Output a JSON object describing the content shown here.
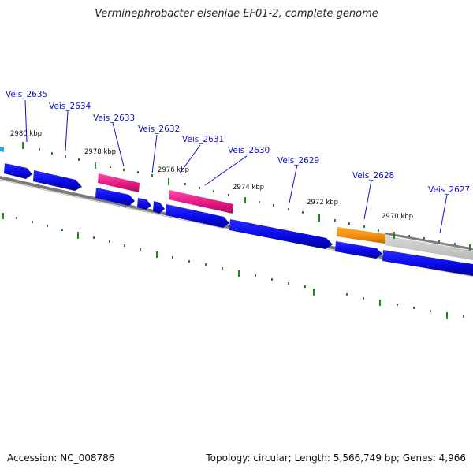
{
  "title": "Verminephrobacter eiseniae EF01-2, complete genome",
  "colors": {
    "cds": "#0a0ae6",
    "rrna": "#e0157f",
    "trna": "#f08c0a",
    "backbone": "#808080",
    "gene_label": "#1010c8",
    "tick": "#1e8a1e",
    "highlight": "#c8c8c8",
    "leftmost": "#20b0c8"
  },
  "gene_labels": [
    "Veis_2635",
    "Veis_2634",
    "Veis_2633",
    "Veis_2632",
    "Veis_2631",
    "Veis_2630",
    "Veis_2629",
    "Veis_2628",
    "Veis_2627"
  ],
  "kbp_labels": [
    "2980 kbp",
    "2978 kbp",
    "2976 kbp",
    "2974 kbp",
    "2972 kbp",
    "2970 kbp"
  ],
  "footer": {
    "accession": "Accession: NC_008786",
    "summary": "Topology: circular; Length: 5,566,749 bp; Genes: 4,966"
  }
}
